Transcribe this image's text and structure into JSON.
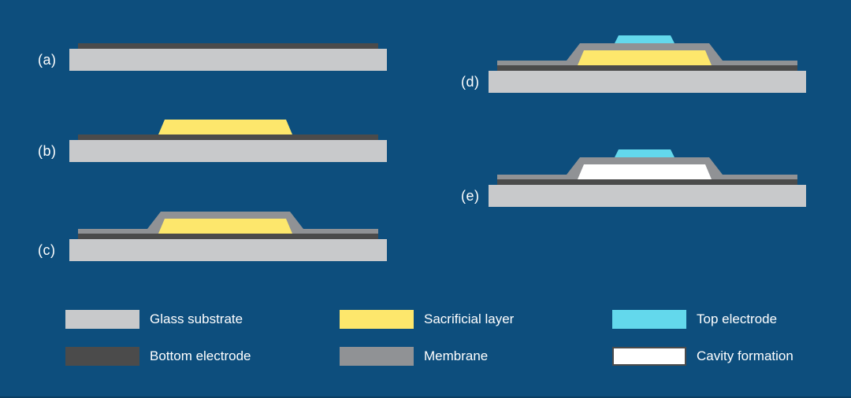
{
  "figure": {
    "background_color": "#0D4E7D",
    "text_color": "#FFFFFF",
    "description": "Fabrication process cross-sections, steps (a) to (e)"
  },
  "layers": {
    "glass": {
      "label": "Glass substrate",
      "color": "#C8C9CB"
    },
    "bottom_electrode": {
      "label": "Bottom electrode",
      "color": "#4B4B4B"
    },
    "sacrificial": {
      "label": "Sacrificial layer",
      "color": "#FDE76C"
    },
    "membrane": {
      "label": "Membrane",
      "color": "#909295"
    },
    "top_electrode": {
      "label": "Top electrode",
      "color": "#63D8EC"
    },
    "cavity": {
      "label": "Cavity formation",
      "color": "#FFFFFF",
      "border_color": "#4B4B4B"
    }
  },
  "steps": [
    {
      "id": "a",
      "label": "(a)",
      "layers": [
        "glass",
        "bottom_electrode"
      ]
    },
    {
      "id": "b",
      "label": "(b)",
      "layers": [
        "glass",
        "bottom_electrode",
        "sacrificial"
      ]
    },
    {
      "id": "c",
      "label": "(c)",
      "layers": [
        "glass",
        "bottom_electrode",
        "sacrificial",
        "membrane"
      ]
    },
    {
      "id": "d",
      "label": "(d)",
      "layers": [
        "glass",
        "bottom_electrode",
        "sacrificial",
        "membrane",
        "top_electrode"
      ]
    },
    {
      "id": "e",
      "label": "(e)",
      "layers": [
        "glass",
        "bottom_electrode",
        "cavity",
        "membrane",
        "top_electrode"
      ]
    }
  ],
  "legend_order": [
    "glass",
    "bottom_electrode",
    "sacrificial",
    "membrane",
    "top_electrode",
    "cavity"
  ]
}
